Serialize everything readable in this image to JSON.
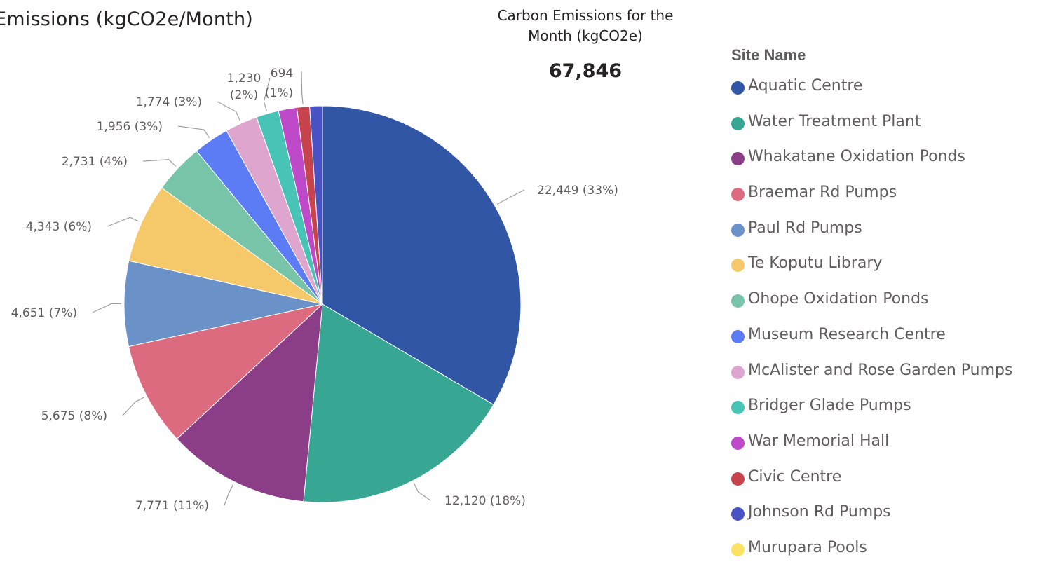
{
  "visual_title": "Emissions (kgCO2e/Month)",
  "card": {
    "title_line1": "Carbon Emissions for the",
    "title_line2": "Month (kgCO2e)",
    "value": "67,846"
  },
  "chart_data": {
    "type": "pie",
    "legend_title": "Site Name",
    "legend_position": "right",
    "slices": [
      {
        "name": "Aquatic Centre",
        "value": 22449,
        "label": "22,449 (33%)",
        "color": "#3156a6"
      },
      {
        "name": "Water Treatment Plant",
        "value": 12120,
        "label": "12,120 (18%)",
        "color": "#37a794"
      },
      {
        "name": "Whakatane Oxidation Ponds",
        "value": 7771,
        "label": "7,771 (11%)",
        "color": "#8b3d88"
      },
      {
        "name": "Braemar Rd Pumps",
        "value": 5675,
        "label": "5,675 (8%)",
        "color": "#dd6b7f"
      },
      {
        "name": "Paul Rd Pumps",
        "value": 4651,
        "label": "4,651 (7%)",
        "color": "#6b91c9"
      },
      {
        "name": "Te Koputu Library",
        "value": 4343,
        "label": "4,343 (6%)",
        "color": "#f5c869"
      },
      {
        "name": "Ohope Oxidation Ponds",
        "value": 2731,
        "label": "2,731 (4%)",
        "color": "#77c4a8"
      },
      {
        "name": "Museum Research Centre",
        "value": 1956,
        "label": "1,956 (3%)",
        "color": "#5b7cf4"
      },
      {
        "name": "McAlister and Rose Garden Pumps",
        "value": 1774,
        "label": "1,774 (3%)",
        "color": "#dea6cf"
      },
      {
        "name": "Bridger Glade Pumps",
        "value": 1230,
        "label": "1,230 (2%)",
        "color": "#48c4b7"
      },
      {
        "name": "War Memorial Hall",
        "value": 1001,
        "label": "",
        "color": "#bf4ac9"
      },
      {
        "name": "Civic Centre",
        "value": 694,
        "label": "694 (1%)",
        "color": "#c7434d"
      },
      {
        "name": "Johnson Rd Pumps",
        "value": 694,
        "label": "",
        "color": "#4852c4"
      },
      {
        "name": "Murupara Pools",
        "value": 0,
        "label": "",
        "color": "#fde163"
      }
    ]
  }
}
